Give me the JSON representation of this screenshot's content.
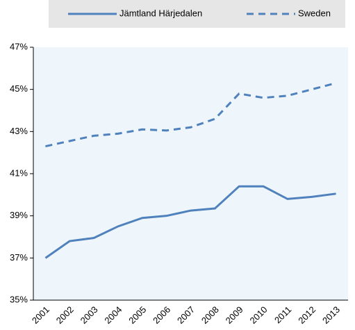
{
  "chart_data": {
    "type": "line",
    "categories": [
      "2001",
      "2002",
      "2003",
      "2004",
      "2005",
      "2006",
      "2007",
      "2008",
      "2009",
      "2010",
      "2011",
      "2012",
      "2013"
    ],
    "series": [
      {
        "name": "Jämtland Härjedalen",
        "color": "#4f81bd",
        "dash": "solid",
        "values": [
          37.0,
          37.8,
          37.95,
          38.5,
          38.9,
          39.0,
          39.25,
          39.35,
          40.4,
          40.4,
          39.8,
          39.9,
          40.05
        ]
      },
      {
        "name": "Sweden",
        "color": "#4f81bd",
        "dash": "dashed",
        "values": [
          42.3,
          42.55,
          42.8,
          42.9,
          43.1,
          43.05,
          43.2,
          43.6,
          44.8,
          44.6,
          44.7,
          45.0,
          45.3
        ]
      }
    ],
    "ylim": [
      35,
      47
    ],
    "yticks": [
      {
        "value": 35,
        "label": "35%"
      },
      {
        "value": 37,
        "label": "37%"
      },
      {
        "value": 39,
        "label": "39%"
      },
      {
        "value": 41,
        "label": "41%"
      },
      {
        "value": 43,
        "label": "43%"
      },
      {
        "value": 45,
        "label": "45%"
      },
      {
        "value": 47,
        "label": "47%"
      }
    ]
  }
}
